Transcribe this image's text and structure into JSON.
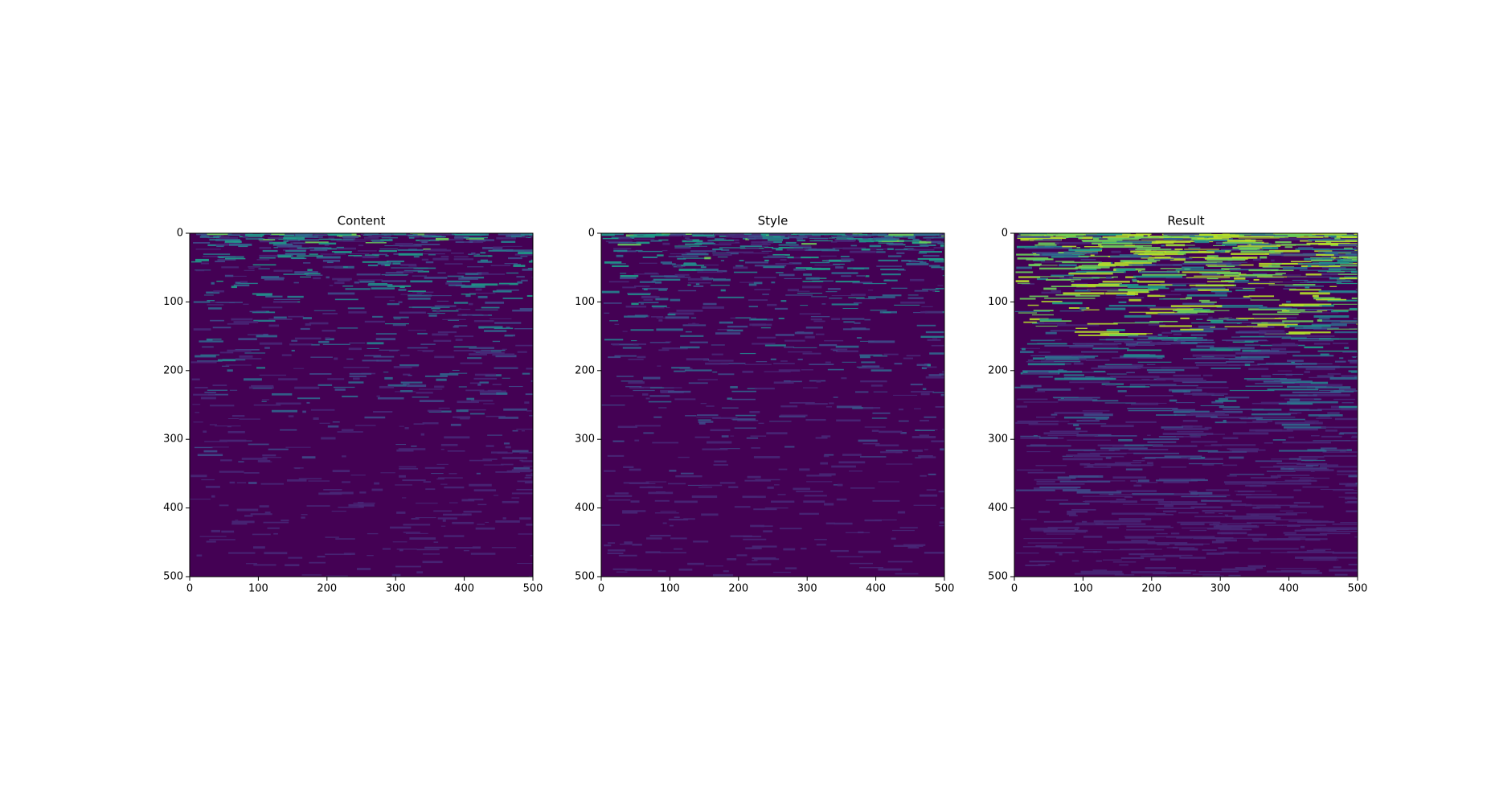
{
  "chart_data": [
    {
      "type": "image",
      "title": "Content",
      "xlim": [
        0,
        500
      ],
      "ylim": [
        500,
        0
      ],
      "xticks": [
        0,
        100,
        200,
        300,
        400,
        500
      ],
      "yticks": [
        0,
        100,
        200,
        300,
        400,
        500
      ]
    },
    {
      "type": "image",
      "title": "Style",
      "xlim": [
        0,
        500
      ],
      "ylim": [
        500,
        0
      ],
      "xticks": [
        0,
        100,
        200,
        300,
        400,
        500
      ],
      "yticks": [
        0,
        100,
        200,
        300,
        400,
        500
      ]
    },
    {
      "type": "image",
      "title": "Result",
      "xlim": [
        0,
        500
      ],
      "ylim": [
        500,
        0
      ],
      "xticks": [
        0,
        100,
        200,
        300,
        400,
        500
      ],
      "yticks": [
        0,
        100,
        200,
        300,
        400,
        500
      ]
    }
  ]
}
